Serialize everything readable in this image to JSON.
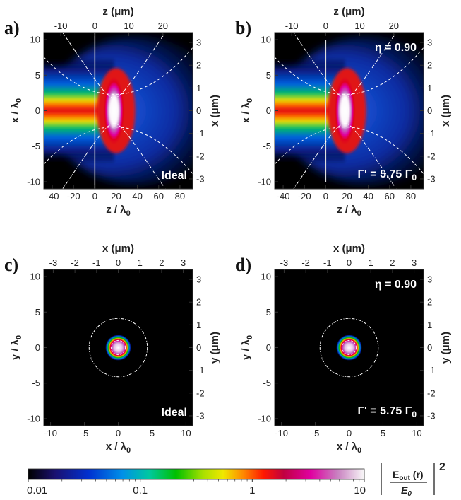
{
  "chart_data": [
    {
      "panel_label": "a)",
      "type": "heatmap",
      "top_axis_label": "z (μm)",
      "top_ticks": [
        "-10",
        "0",
        "10",
        "20"
      ],
      "bottom_axis_label": "z / λ0",
      "bottom_ticks": [
        "-40",
        "-20",
        "0",
        "20",
        "40",
        "60",
        "80"
      ],
      "left_axis_label": "x / λ0",
      "left_ticks": [
        "-10",
        "-5",
        "0",
        "5",
        "10"
      ],
      "right_axis_label": "x (μm)",
      "right_ticks": [
        "-3",
        "-2",
        "-1",
        "0",
        "1",
        "2",
        "3"
      ],
      "xlim": [
        -48,
        92
      ],
      "ylim": [
        -11,
        11
      ],
      "annotations": [
        "Ideal"
      ]
    },
    {
      "panel_label": "b)",
      "type": "heatmap",
      "top_axis_label": "z (μm)",
      "top_ticks": [
        "-10",
        "0",
        "10",
        "20"
      ],
      "bottom_axis_label": "z / λ0",
      "bottom_ticks": [
        "-40",
        "-20",
        "0",
        "20",
        "40",
        "60",
        "80"
      ],
      "left_axis_label": "x / λ0",
      "left_ticks": [
        "-10",
        "-5",
        "0",
        "5",
        "10"
      ],
      "right_axis_label": "x (μm)",
      "right_ticks": [
        "-3",
        "-2",
        "-1",
        "0",
        "1",
        "2",
        "3"
      ],
      "xlim": [
        -48,
        92
      ],
      "ylim": [
        -11,
        11
      ],
      "annotations": [
        "η = 0.90",
        "Γ' = 5.75 Γ0"
      ]
    },
    {
      "panel_label": "c)",
      "type": "heatmap",
      "top_axis_label": "x (μm)",
      "top_ticks": [
        "-3",
        "-2",
        "-1",
        "0",
        "1",
        "2",
        "3"
      ],
      "bottom_axis_label": "x / λ0",
      "bottom_ticks": [
        "-10",
        "-5",
        "0",
        "5",
        "10"
      ],
      "left_axis_label": "y / λ0",
      "left_ticks": [
        "-10",
        "-5",
        "0",
        "5",
        "10"
      ],
      "right_axis_label": "y (μm)",
      "right_ticks": [
        "-3",
        "-2",
        "-1",
        "0",
        "1",
        "2",
        "3"
      ],
      "xlim": [
        -11,
        11
      ],
      "ylim": [
        -11,
        11
      ],
      "annotations": [
        "Ideal"
      ]
    },
    {
      "panel_label": "d)",
      "type": "heatmap",
      "top_axis_label": "x (μm)",
      "top_ticks": [
        "-3",
        "-2",
        "-1",
        "0",
        "1",
        "2",
        "3"
      ],
      "bottom_axis_label": "x / λ0",
      "bottom_ticks": [
        "-10",
        "-5",
        "0",
        "5",
        "10"
      ],
      "left_axis_label": "y / λ0",
      "left_ticks": [
        "-10",
        "-5",
        "0",
        "5",
        "10"
      ],
      "right_axis_label": "y (μm)",
      "right_ticks": [
        "-3",
        "-2",
        "-1",
        "0",
        "1",
        "2",
        "3"
      ],
      "xlim": [
        -11,
        11
      ],
      "ylim": [
        -11,
        11
      ],
      "annotations": [
        "η = 0.90",
        "Γ' = 5.75 Γ0"
      ]
    }
  ],
  "colorbar": {
    "ticks": [
      "0.01",
      "0.1",
      "1",
      "10"
    ],
    "scale": "log",
    "range": [
      0.01,
      10
    ],
    "colors": [
      "#000000",
      "#1a1070",
      "#0030d0",
      "#0090e8",
      "#00c8a0",
      "#00c000",
      "#a8e000",
      "#f0e800",
      "#ff8800",
      "#ff1800",
      "#c00040",
      "#e000a0",
      "#c880c0",
      "#f8f8f8"
    ],
    "title": "|Eout(r)/E0|²"
  }
}
